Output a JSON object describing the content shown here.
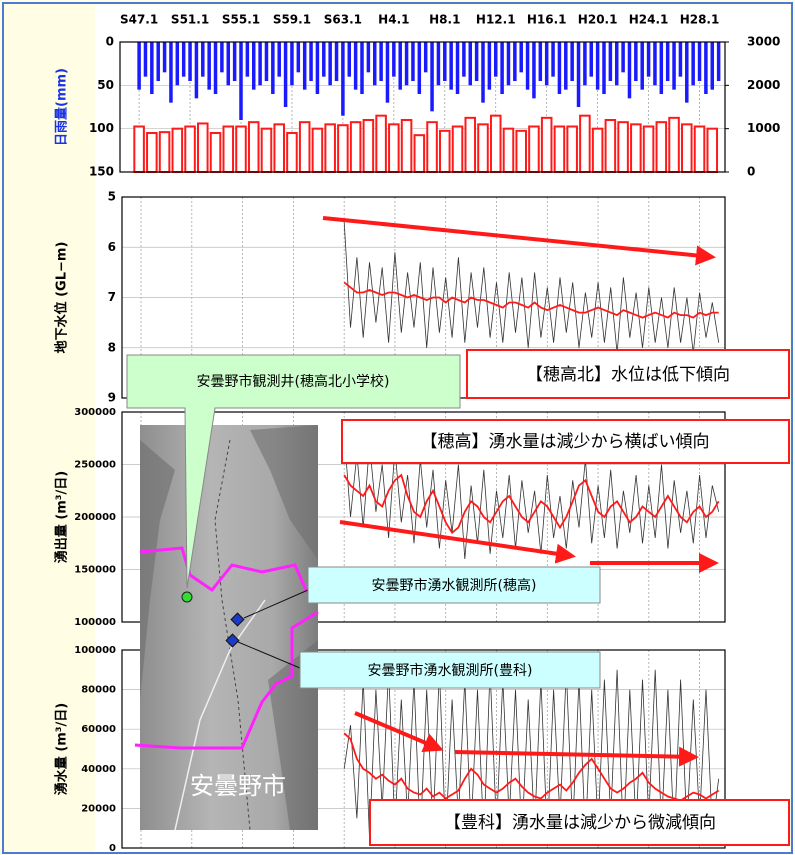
{
  "chart_data": [
    {
      "type": "bar",
      "ylabel": "日雨量(mm)",
      "ylabel_color": "#1a33e6",
      "y_inverted": true,
      "xlim": [
        1970.5,
        2018
      ],
      "xticks": [
        {
          "value": 1972,
          "label": "S47.1"
        },
        {
          "value": 1976,
          "label": "S51.1"
        },
        {
          "value": 1980,
          "label": "S55.1"
        },
        {
          "value": 1984,
          "label": "S59.1"
        },
        {
          "value": 1988,
          "label": "S63.1"
        },
        {
          "value": 1992,
          "label": "H4.1"
        },
        {
          "value": 1996,
          "label": "H8.1"
        },
        {
          "value": 2000,
          "label": "H12.1"
        },
        {
          "value": 2004,
          "label": "H16.1"
        },
        {
          "value": 2008,
          "label": "H20.1"
        },
        {
          "value": 2012,
          "label": "H24.1"
        },
        {
          "value": 2016,
          "label": "H28.1"
        }
      ],
      "ylim": [
        0,
        150
      ],
      "yticks": [
        0,
        50,
        100,
        150
      ],
      "y2lim": [
        0,
        3000
      ],
      "y2ticks": [
        0,
        1000,
        2000,
        3000
      ],
      "series": [
        {
          "color": "#1a1aff",
          "x": [
            1972,
            1972.5,
            1973,
            1973.5,
            1974,
            1974.5,
            1975,
            1975.5,
            1976,
            1976.5,
            1977,
            1977.5,
            1978,
            1978.5,
            1979,
            1979.5,
            1980,
            1980.5,
            1981,
            1981.5,
            1982,
            1982.5,
            1983,
            1983.5,
            1984,
            1984.5,
            1985,
            1985.5,
            1986,
            1986.5,
            1987,
            1987.5,
            1988,
            1988.5,
            1989,
            1989.5,
            1990,
            1990.5,
            1991,
            1991.5,
            1992,
            1992.5,
            1993,
            1993.5,
            1994,
            1994.5,
            1995,
            1995.5,
            1996,
            1996.5,
            1997,
            1997.5,
            1998,
            1998.5,
            1999,
            1999.5,
            2000,
            2000.5,
            2001,
            2001.5,
            2002,
            2002.5,
            2003,
            2003.5,
            2004,
            2004.5,
            2005,
            2005.5,
            2006,
            2006.5,
            2007,
            2007.5,
            2008,
            2008.5,
            2009,
            2009.5,
            2010,
            2010.5,
            2011,
            2011.5,
            2012,
            2012.5,
            2013,
            2013.5,
            2014,
            2014.5,
            2015,
            2015.5,
            2016,
            2016.5,
            2017,
            2017.5
          ],
          "values": [
            55,
            40,
            60,
            45,
            35,
            70,
            50,
            40,
            45,
            65,
            40,
            55,
            60,
            35,
            50,
            45,
            90,
            40,
            55,
            50,
            45,
            60,
            40,
            75,
            50,
            35,
            55,
            45,
            60,
            40,
            50,
            45,
            85,
            40,
            55,
            60,
            35,
            50,
            45,
            70,
            40,
            55,
            50,
            45,
            60,
            35,
            80,
            50,
            45,
            55,
            60,
            40,
            50,
            45,
            70,
            55,
            40,
            60,
            50,
            45,
            35,
            55,
            65,
            45,
            50,
            40,
            60,
            55,
            45,
            75,
            50,
            40,
            55,
            60,
            45,
            50,
            35,
            65,
            45,
            55,
            40,
            50,
            60,
            45,
            55,
            40,
            70,
            50,
            45,
            60,
            55,
            45
          ]
        },
        {
          "color": "#ff1a1a",
          "axis": "y2",
          "x": [
            1972,
            1973,
            1974,
            1975,
            1976,
            1977,
            1978,
            1979,
            1980,
            1981,
            1982,
            1983,
            1984,
            1985,
            1986,
            1987,
            1988,
            1989,
            1990,
            1991,
            1992,
            1993,
            1994,
            1995,
            1996,
            1997,
            1998,
            1999,
            2000,
            2001,
            2002,
            2003,
            2004,
            2005,
            2006,
            2007,
            2008,
            2009,
            2010,
            2011,
            2012,
            2013,
            2014,
            2015,
            2016,
            2017
          ],
          "values": [
            1050,
            900,
            920,
            1000,
            1050,
            1120,
            900,
            1050,
            1050,
            1150,
            1000,
            1100,
            900,
            1150,
            1000,
            1100,
            1080,
            1150,
            1200,
            1300,
            1100,
            1200,
            850,
            1150,
            950,
            1050,
            1250,
            1100,
            1300,
            1000,
            950,
            1050,
            1250,
            1050,
            1050,
            1300,
            1000,
            1200,
            1150,
            1100,
            1050,
            1150,
            1250,
            1100,
            1050,
            1000
          ]
        }
      ]
    },
    {
      "type": "line",
      "ylabel": "地下水位 (GL−m)",
      "y_inverted": true,
      "xlim": [
        1970.5,
        2018
      ],
      "ylim": [
        5,
        9
      ],
      "yticks": [
        5,
        6,
        7,
        8,
        9
      ],
      "annotations": [
        "【穂高北】水位は低下傾向"
      ],
      "x": [
        1988,
        1988.5,
        1989,
        1989.5,
        1990,
        1990.5,
        1991,
        1991.5,
        1992,
        1992.5,
        1993,
        1993.5,
        1994,
        1994.5,
        1995,
        1995.5,
        1996,
        1996.5,
        1997,
        1997.5,
        1998,
        1998.5,
        1999,
        1999.5,
        2000,
        2000.5,
        2001,
        2001.5,
        2002,
        2002.5,
        2003,
        2003.5,
        2004,
        2004.5,
        2005,
        2005.5,
        2006,
        2006.5,
        2007,
        2007.5,
        2008,
        2008.5,
        2009,
        2009.5,
        2010,
        2010.5,
        2011,
        2011.5,
        2012,
        2012.5,
        2013,
        2013.5,
        2014,
        2014.5,
        2015,
        2015.5,
        2016,
        2016.5,
        2017,
        2017.5
      ],
      "series": [
        {
          "color": "#333333",
          "values": [
            5.5,
            7.6,
            6.2,
            7.8,
            6.3,
            7.5,
            6.4,
            7.9,
            6.1,
            7.7,
            6.5,
            7.6,
            6.3,
            8.0,
            6.4,
            7.7,
            6.6,
            7.8,
            6.2,
            7.9,
            6.5,
            7.6,
            6.4,
            7.8,
            6.7,
            7.9,
            6.5,
            7.7,
            6.6,
            8.0,
            6.5,
            7.8,
            6.8,
            7.9,
            6.6,
            7.7,
            6.7,
            8.0,
            6.9,
            7.8,
            6.7,
            7.9,
            6.8,
            8.1,
            6.6,
            7.8,
            6.9,
            8.0,
            6.8,
            7.9,
            7.0,
            8.0,
            6.8,
            7.9,
            7.0,
            8.1,
            6.9,
            7.8,
            7.1,
            7.9
          ]
        },
        {
          "color": "#ff1a1a",
          "values": [
            6.7,
            6.8,
            6.9,
            6.9,
            6.85,
            6.9,
            6.95,
            6.9,
            6.9,
            6.95,
            7.0,
            6.95,
            7.0,
            7.05,
            7.0,
            7.0,
            7.1,
            7.0,
            7.05,
            7.1,
            7.0,
            7.05,
            7.05,
            7.1,
            7.15,
            7.2,
            7.1,
            7.1,
            7.15,
            7.2,
            7.1,
            7.2,
            7.25,
            7.2,
            7.15,
            7.2,
            7.25,
            7.3,
            7.3,
            7.25,
            7.2,
            7.25,
            7.3,
            7.35,
            7.25,
            7.3,
            7.35,
            7.4,
            7.35,
            7.3,
            7.35,
            7.4,
            7.3,
            7.35,
            7.35,
            7.4,
            7.3,
            7.35,
            7.3,
            7.3
          ]
        }
      ]
    },
    {
      "type": "line",
      "ylabel": "湧出量 (m³/日)",
      "xlim": [
        1970.5,
        2018
      ],
      "ylim": [
        100000,
        300000
      ],
      "yticks": [
        100000,
        150000,
        200000,
        250000,
        300000
      ],
      "annotations": [
        "【穂高】湧水量は減少から横ばい傾向"
      ],
      "x": [
        1988,
        1988.5,
        1989,
        1989.5,
        1990,
        1990.5,
        1991,
        1991.5,
        1992,
        1992.5,
        1993,
        1993.5,
        1994,
        1994.5,
        1995,
        1995.5,
        1996,
        1996.5,
        1997,
        1997.5,
        1998,
        1998.5,
        1999,
        1999.5,
        2000,
        2000.5,
        2001,
        2001.5,
        2002,
        2002.5,
        2003,
        2003.5,
        2004,
        2004.5,
        2005,
        2005.5,
        2006,
        2006.5,
        2007,
        2007.5,
        2008,
        2008.5,
        2009,
        2009.5,
        2010,
        2010.5,
        2011,
        2011.5,
        2012,
        2012.5,
        2013,
        2013.5,
        2014,
        2014.5,
        2015,
        2015.5,
        2016,
        2016.5,
        2017,
        2017.5
      ],
      "series": [
        {
          "color": "#333333",
          "values": [
            280000,
            200000,
            260000,
            190000,
            270000,
            205000,
            250000,
            180000,
            265000,
            195000,
            240000,
            175000,
            255000,
            190000,
            245000,
            170000,
            235000,
            185000,
            250000,
            160000,
            230000,
            175000,
            245000,
            165000,
            225000,
            180000,
            240000,
            170000,
            235000,
            185000,
            225000,
            165000,
            240000,
            180000,
            220000,
            170000,
            235000,
            190000,
            255000,
            175000,
            230000,
            180000,
            245000,
            170000,
            225000,
            185000,
            240000,
            175000,
            230000,
            180000,
            250000,
            170000,
            235000,
            185000,
            225000,
            175000,
            240000,
            180000,
            230000,
            205000
          ]
        },
        {
          "color": "#ff1a1a",
          "values": [
            240000,
            230000,
            225000,
            220000,
            230000,
            215000,
            210000,
            225000,
            235000,
            240000,
            220000,
            205000,
            200000,
            215000,
            225000,
            210000,
            195000,
            185000,
            190000,
            205000,
            215000,
            210000,
            200000,
            195000,
            205000,
            215000,
            220000,
            210000,
            200000,
            195000,
            205000,
            215000,
            210000,
            200000,
            190000,
            200000,
            215000,
            230000,
            235000,
            220000,
            205000,
            200000,
            210000,
            215000,
            205000,
            195000,
            200000,
            210000,
            205000,
            200000,
            210000,
            220000,
            210000,
            200000,
            195000,
            205000,
            210000,
            200000,
            205000,
            215000
          ]
        }
      ]
    },
    {
      "type": "line",
      "ylabel": "湧水量 (m³/日)",
      "xlim": [
        1970.5,
        2018
      ],
      "ylim": [
        0,
        100000
      ],
      "yticks": [
        0,
        20000,
        40000,
        60000,
        80000,
        100000
      ],
      "annotations": [
        "【豊科】湧水量は減少から微減傾向"
      ],
      "x": [
        1988,
        1988.5,
        1989,
        1989.5,
        1990,
        1990.5,
        1991,
        1991.5,
        1992,
        1992.5,
        1993,
        1993.5,
        1994,
        1994.5,
        1995,
        1995.5,
        1996,
        1996.5,
        1997,
        1997.5,
        1998,
        1998.5,
        1999,
        1999.5,
        2000,
        2000.5,
        2001,
        2001.5,
        2002,
        2002.5,
        2003,
        2003.5,
        2004,
        2004.5,
        2005,
        2005.5,
        2006,
        2006.5,
        2007,
        2007.5,
        2008,
        2008.5,
        2009,
        2009.5,
        2010,
        2010.5,
        2011,
        2011.5,
        2012,
        2012.5,
        2013,
        2013.5,
        2014,
        2014.5,
        2015,
        2015.5,
        2016,
        2016.5,
        2017,
        2017.5
      ],
      "series": [
        {
          "color": "#333333",
          "values": [
            40000,
            62000,
            15000,
            85000,
            5000,
            80000,
            20000,
            90000,
            10000,
            75000,
            15000,
            85000,
            5000,
            80000,
            10000,
            90000,
            5000,
            75000,
            15000,
            85000,
            10000,
            80000,
            5000,
            90000,
            10000,
            85000,
            15000,
            80000,
            5000,
            75000,
            10000,
            85000,
            5000,
            80000,
            15000,
            90000,
            10000,
            85000,
            5000,
            80000,
            10000,
            85000,
            15000,
            90000,
            5000,
            80000,
            10000,
            85000,
            15000,
            90000,
            10000,
            80000,
            5000,
            85000,
            10000,
            75000,
            15000,
            80000,
            10000,
            35000
          ]
        },
        {
          "color": "#ff1a1a",
          "values": [
            58000,
            55000,
            45000,
            40000,
            38000,
            35000,
            37000,
            34000,
            32000,
            35000,
            30000,
            28000,
            27000,
            30000,
            26000,
            28000,
            25000,
            27000,
            29000,
            35000,
            40000,
            37000,
            32000,
            30000,
            28000,
            30000,
            33000,
            35000,
            31000,
            28000,
            26000,
            25000,
            28000,
            30000,
            32000,
            29000,
            33000,
            38000,
            42000,
            45000,
            40000,
            35000,
            30000,
            28000,
            30000,
            33000,
            35000,
            38000,
            33000,
            30000,
            28000,
            26000,
            25000,
            24000,
            26000,
            28000,
            27000,
            25000,
            27000,
            29000
          ]
        }
      ]
    }
  ],
  "map": {
    "label": "安曇野市",
    "stations": [
      "安曇野市観測井(穂高北小学校)",
      "安曇野市湧水観測所(穂高)",
      "安曇野市湧水観測所(豊科)"
    ]
  }
}
